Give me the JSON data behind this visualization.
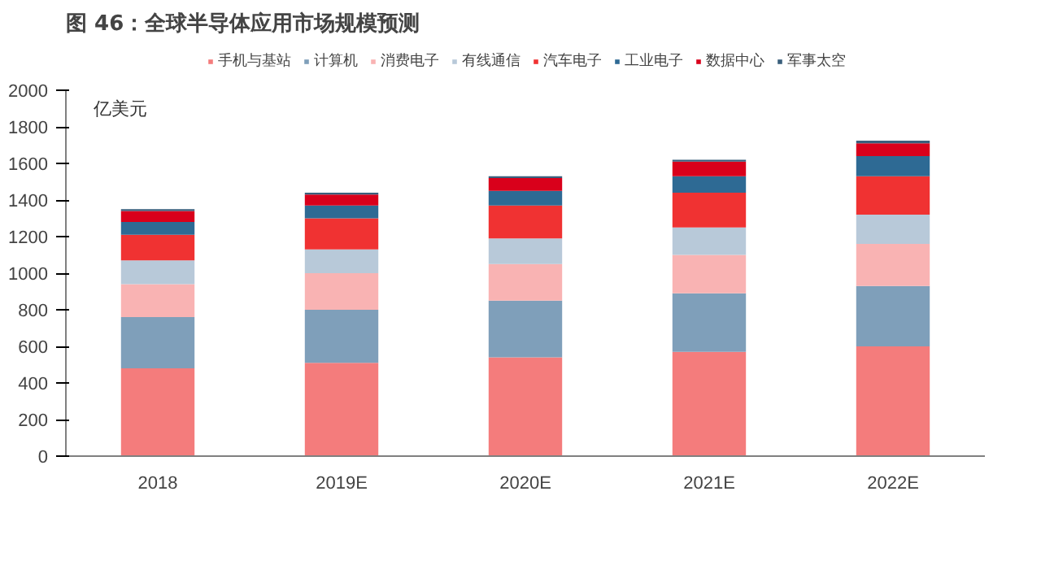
{
  "chart_data": {
    "type": "bar",
    "stacked": true,
    "title": "图 46：全球半导体应用市场规模预测",
    "ylabel": "亿美元",
    "categories": [
      "2018",
      "2019E",
      "2020E",
      "2021E",
      "2022E"
    ],
    "series": [
      {
        "name": "手机与基站",
        "color": "#f47c7c",
        "values": [
          480,
          510,
          540,
          570,
          600
        ]
      },
      {
        "name": "计算机",
        "color": "#7f9fba",
        "values": [
          280,
          290,
          310,
          320,
          330
        ]
      },
      {
        "name": "消费电子",
        "color": "#f9b3b3",
        "values": [
          180,
          200,
          200,
          210,
          230
        ]
      },
      {
        "name": "有线通信",
        "color": "#b8c9d9",
        "values": [
          130,
          130,
          140,
          150,
          160
        ]
      },
      {
        "name": "汽车电子",
        "color": "#f03232",
        "values": [
          140,
          170,
          180,
          190,
          210
        ]
      },
      {
        "name": "工业电子",
        "color": "#2e6a94",
        "values": [
          70,
          70,
          80,
          90,
          110
        ]
      },
      {
        "name": "数据中心",
        "color": "#d9001b",
        "values": [
          60,
          60,
          70,
          80,
          70
        ]
      },
      {
        "name": "军事太空",
        "color": "#3a5f7c",
        "values": [
          10,
          10,
          10,
          10,
          15
        ]
      }
    ],
    "ylim": [
      0,
      2000
    ],
    "yticks": [
      0,
      200,
      400,
      600,
      800,
      1000,
      1200,
      1400,
      1600,
      1800,
      2000
    ],
    "grid": false,
    "legend": "top"
  }
}
